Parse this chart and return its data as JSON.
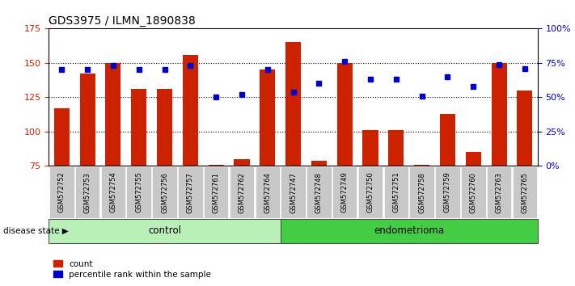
{
  "title": "GDS3975 / ILMN_1890838",
  "samples": [
    "GSM572752",
    "GSM572753",
    "GSM572754",
    "GSM572755",
    "GSM572756",
    "GSM572757",
    "GSM572761",
    "GSM572762",
    "GSM572764",
    "GSM572747",
    "GSM572748",
    "GSM572749",
    "GSM572750",
    "GSM572751",
    "GSM572758",
    "GSM572759",
    "GSM572760",
    "GSM572763",
    "GSM572765"
  ],
  "counts": [
    117,
    142,
    150,
    131,
    131,
    156,
    76,
    80,
    145,
    165,
    79,
    150,
    101,
    101,
    76,
    113,
    85,
    150,
    130
  ],
  "percentiles": [
    70,
    70,
    73,
    70,
    70,
    73,
    50,
    52,
    70,
    54,
    60,
    76,
    63,
    63,
    51,
    65,
    58,
    74,
    71
  ],
  "n_control": 9,
  "n_endometrioma": 10,
  "bar_color": "#cc2200",
  "dot_color": "#0000cc",
  "ylim_left": [
    75,
    175
  ],
  "ylim_right": [
    0,
    100
  ],
  "yticks_left": [
    75,
    100,
    125,
    150,
    175
  ],
  "yticks_right": [
    0,
    25,
    50,
    75,
    100
  ],
  "ytick_labels_right": [
    "0%",
    "25%",
    "50%",
    "75%",
    "100%"
  ],
  "hgrid_values": [
    100,
    125,
    150
  ],
  "tick_bg_color": "#c8c8c8",
  "control_color_light": "#b8f0b8",
  "endometrioma_color": "#44cc44",
  "disease_state_label": "disease state",
  "control_label": "control",
  "endometrioma_label": "endometrioma",
  "legend_count": "count",
  "legend_percentile": "percentile rank within the sample"
}
